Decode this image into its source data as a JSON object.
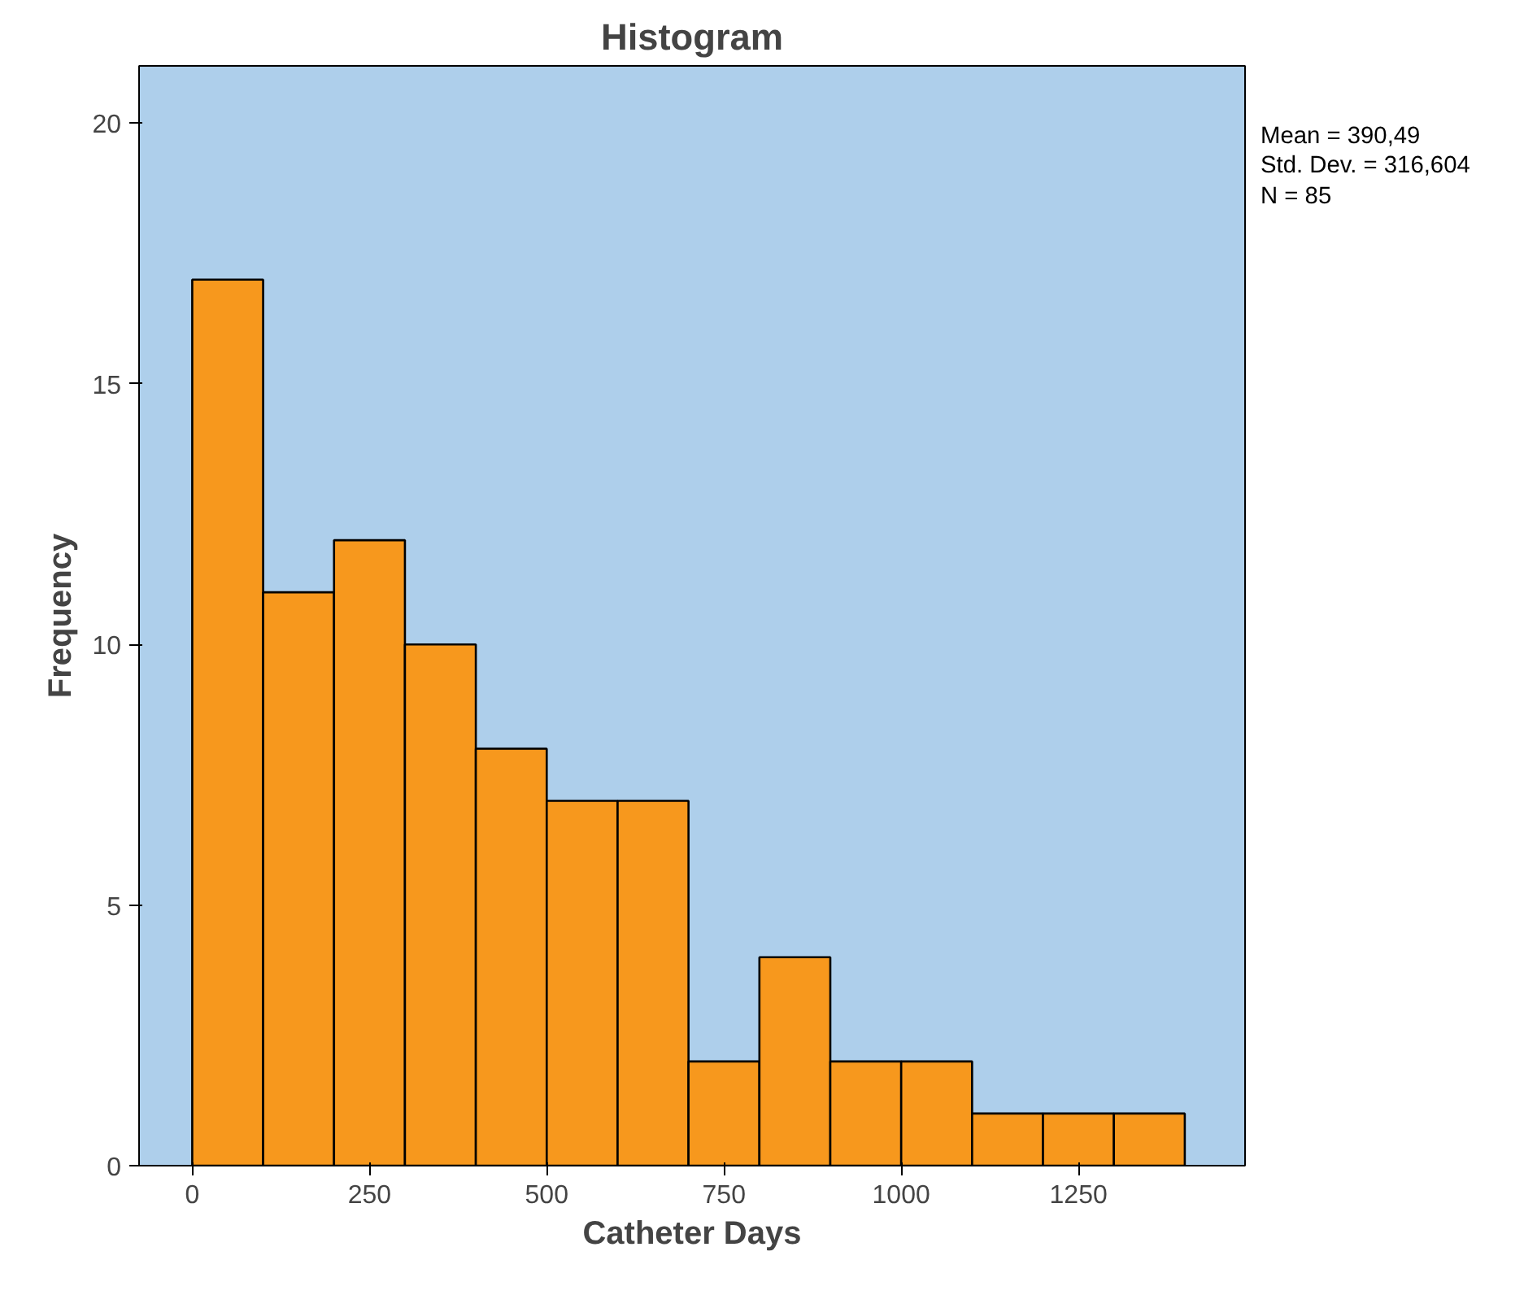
{
  "chart_data": {
    "type": "histogram",
    "title": "Histogram",
    "xlabel": "Catheter Days",
    "ylabel": "Frequency",
    "bins": [
      0,
      100,
      200,
      300,
      400,
      500,
      600,
      700,
      800,
      900,
      1000,
      1100,
      1200,
      1300,
      1400
    ],
    "values": [
      17,
      11,
      12,
      10,
      8,
      7,
      7,
      2,
      4,
      2,
      2,
      1,
      1,
      1
    ],
    "color": "#f7981d",
    "xlim": [
      -75,
      1485
    ],
    "ylim": [
      0,
      21.1
    ],
    "xticks": [
      0,
      250,
      500,
      750,
      1000,
      1250
    ],
    "yticks": [
      0,
      5,
      10,
      15,
      20
    ],
    "grid": false,
    "annotations": [
      "Mean = 390,49",
      "Std. Dev. = 316,604",
      "N = 85"
    ]
  }
}
